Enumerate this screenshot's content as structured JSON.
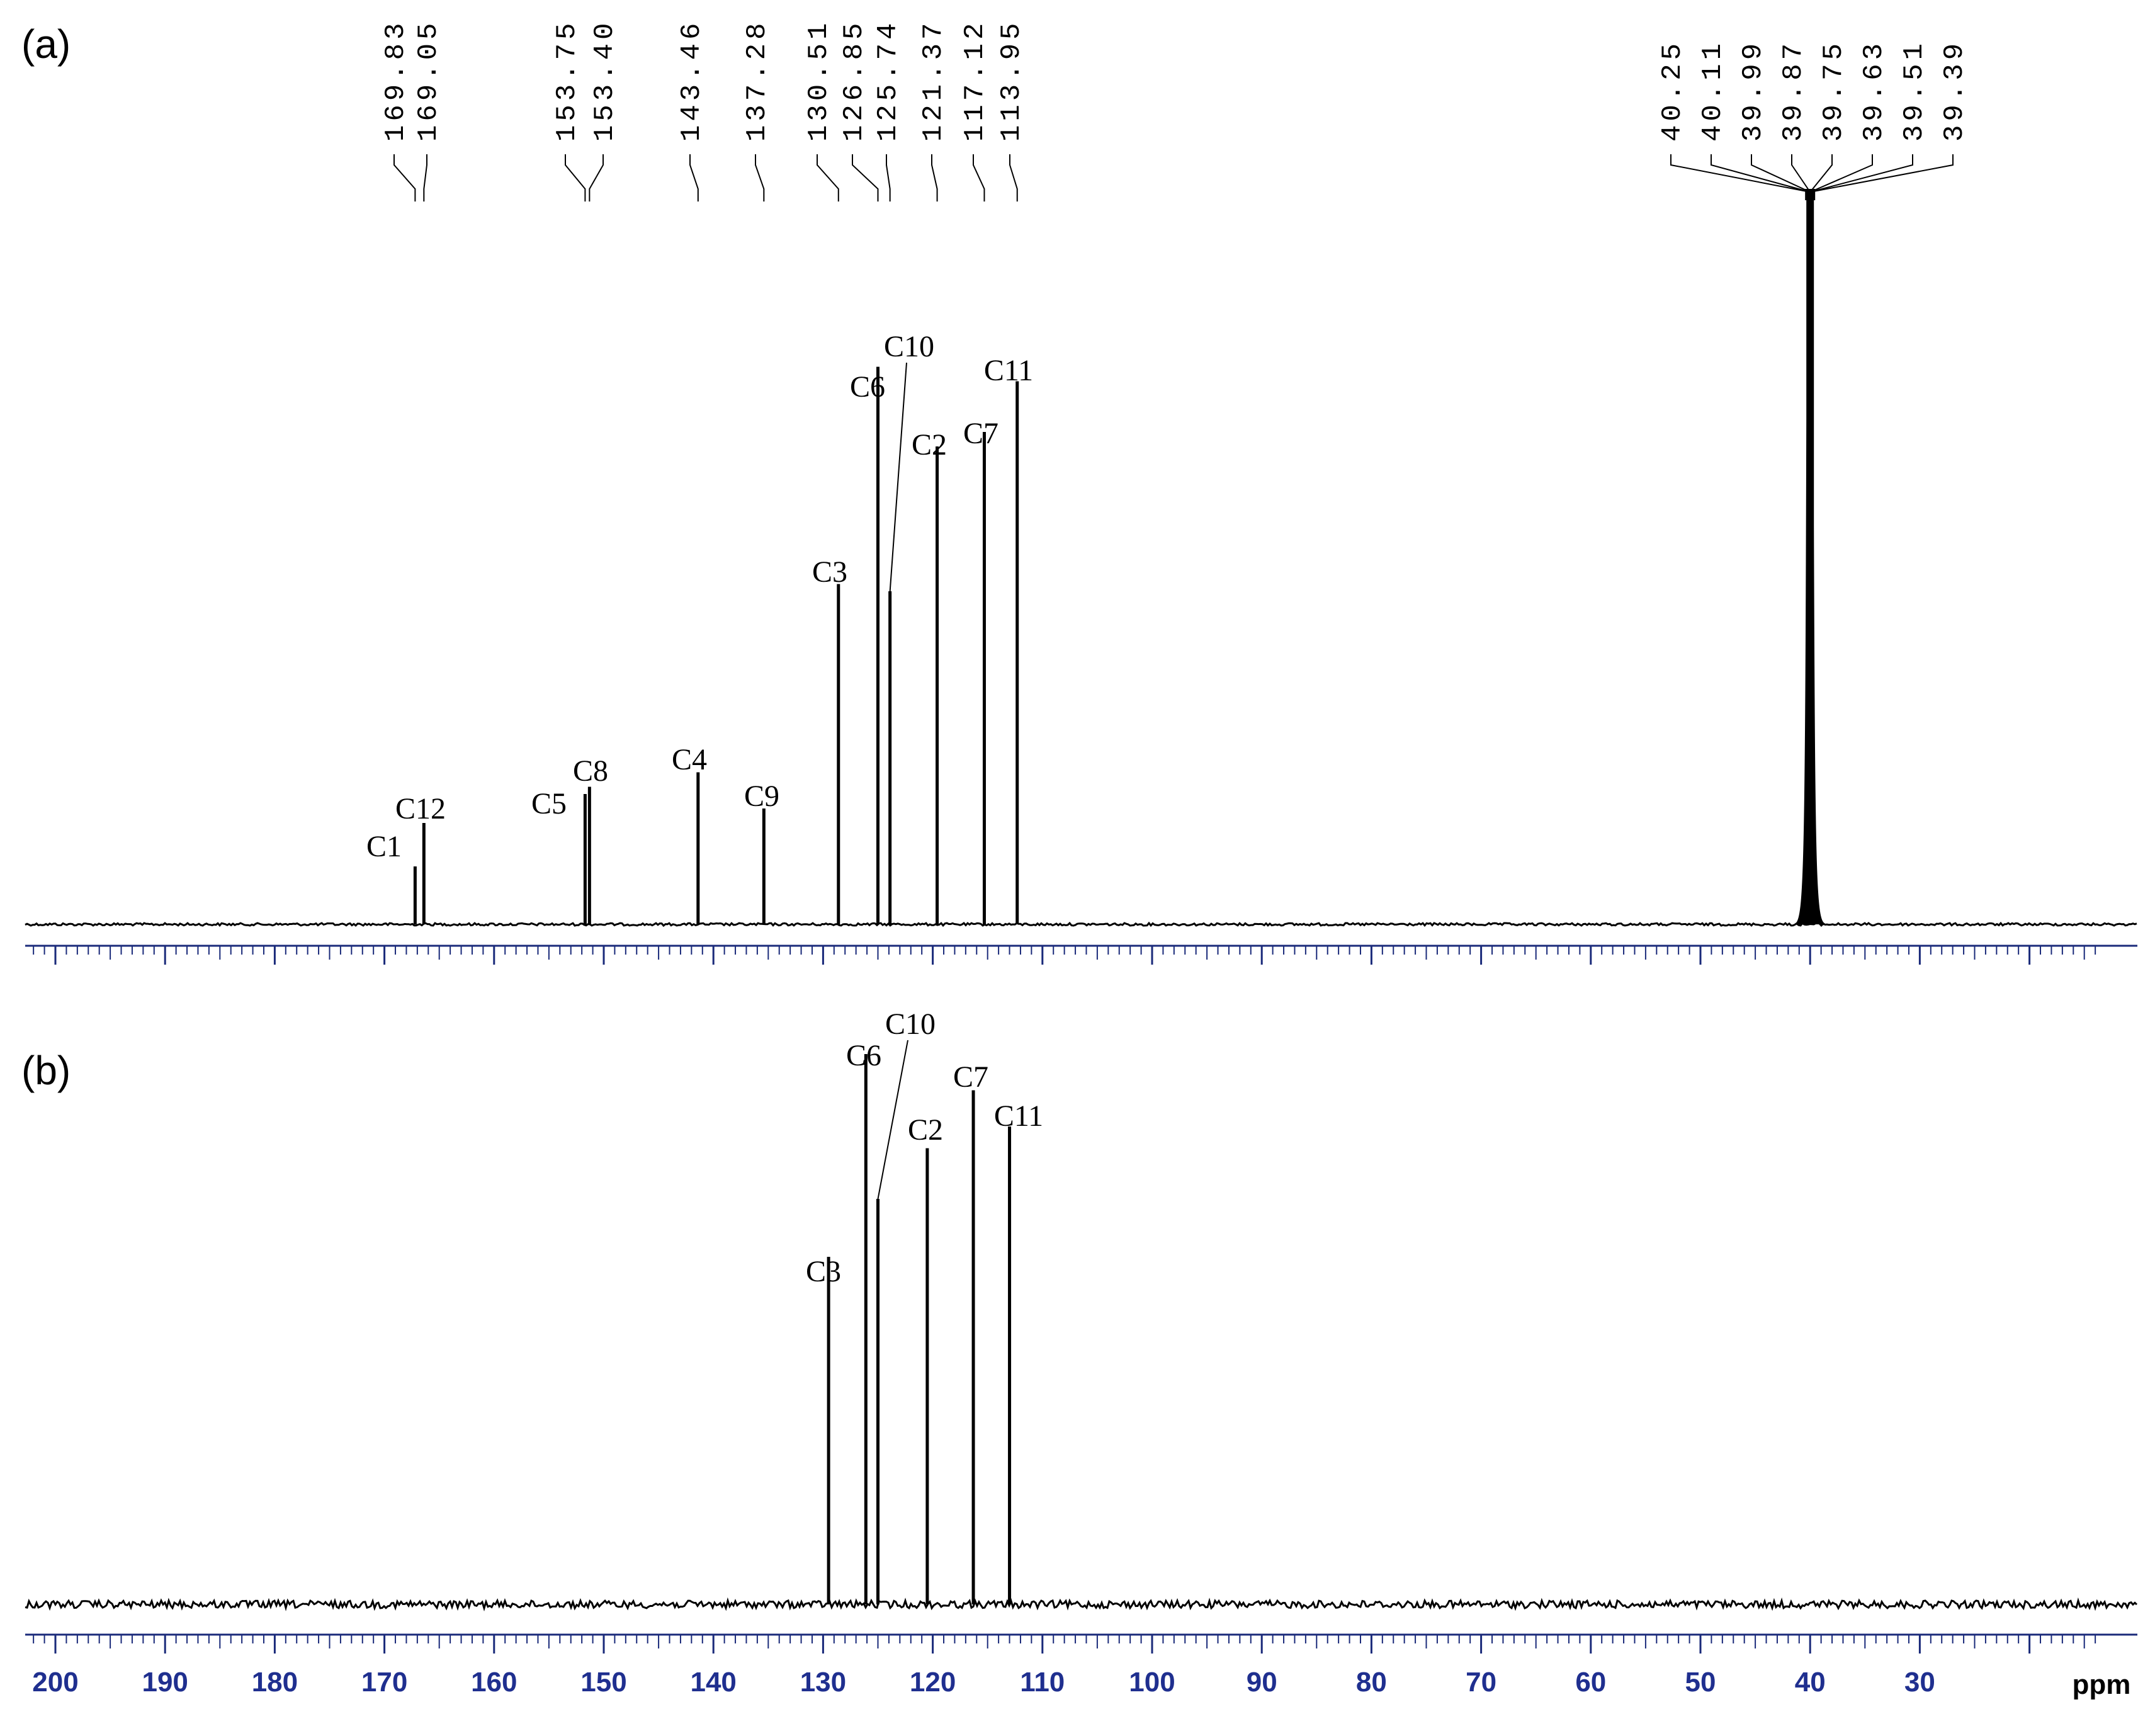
{
  "colors": {
    "trace": "#000000",
    "axis": "#1a2a7a",
    "axis_label": "#1f2f8f",
    "background": "#ffffff"
  },
  "chart_data": [
    {
      "type": "line",
      "panel": "(a)",
      "x_unit": "ppm",
      "xlim": [
        205,
        12
      ],
      "x_direction": "reversed",
      "solvent_peak_shifts": [
        "40.25",
        "40.11",
        "39.99",
        "39.87",
        "39.75",
        "39.63",
        "39.51",
        "39.39"
      ],
      "peaks": [
        {
          "label": "C1",
          "shift": "169.83",
          "x": 167.2,
          "intensity": 0.08
        },
        {
          "label": "C12",
          "shift": "169.05",
          "x": 166.4,
          "intensity": 0.14
        },
        {
          "label": "C5",
          "shift": "153.75",
          "x": 151.7,
          "intensity": 0.18
        },
        {
          "label": "C8",
          "shift": "153.40",
          "x": 151.3,
          "intensity": 0.19
        },
        {
          "label": "C4",
          "shift": "143.46",
          "x": 141.4,
          "intensity": 0.21
        },
        {
          "label": "C9",
          "shift": "137.28",
          "x": 135.4,
          "intensity": 0.16
        },
        {
          "label": "C3",
          "shift": "130.51",
          "x": 128.6,
          "intensity": 0.47
        },
        {
          "label": "C6",
          "shift": "126.85",
          "x": 125.0,
          "intensity": 0.77
        },
        {
          "label": "C10",
          "shift": "125.74",
          "x": 123.9,
          "intensity": 0.46
        },
        {
          "label": "C2",
          "shift": "121.37",
          "x": 119.6,
          "intensity": 0.66
        },
        {
          "label": "C7",
          "shift": "117.12",
          "x": 115.3,
          "intensity": 0.68
        },
        {
          "label": "C11",
          "shift": "113.95",
          "x": 112.3,
          "intensity": 0.75
        }
      ],
      "solvent_peak": {
        "x": 40.0,
        "intensity": 1.0
      }
    },
    {
      "type": "line",
      "panel": "(b)",
      "x_unit": "ppm",
      "xlim": [
        205,
        12
      ],
      "x_direction": "reversed",
      "peaks": [
        {
          "label": "C3",
          "x": 129.5,
          "intensity": 0.48
        },
        {
          "label": "C6",
          "x": 126.1,
          "intensity": 0.76
        },
        {
          "label": "C10",
          "x": 125.0,
          "intensity": 0.56
        },
        {
          "label": "C2",
          "x": 120.5,
          "intensity": 0.63
        },
        {
          "label": "C7",
          "x": 116.3,
          "intensity": 0.71
        },
        {
          "label": "C11",
          "x": 113.0,
          "intensity": 0.66
        }
      ]
    }
  ],
  "x_axis": {
    "tick_labels": [
      "200",
      "190",
      "180",
      "170",
      "160",
      "150",
      "140",
      "130",
      "120",
      "110",
      "100",
      "90",
      "80",
      "70",
      "60",
      "50",
      "40",
      "30"
    ],
    "unit": "ppm"
  }
}
